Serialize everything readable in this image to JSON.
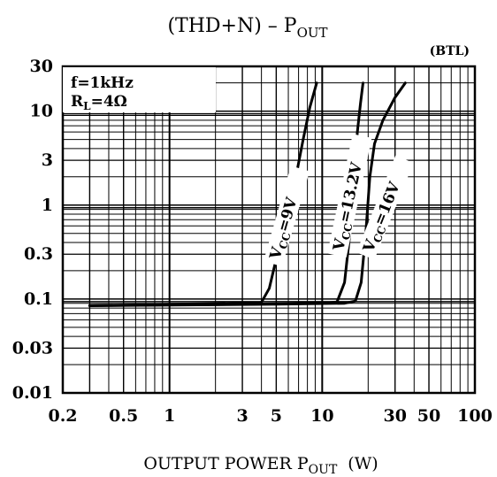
{
  "chart_data": {
    "type": "line",
    "title": "(THD+N) - POUT",
    "title_parts": {
      "main": "(THD+N)  –  P",
      "sub": "OUT"
    },
    "corner_note": "(BTL)",
    "xlabel_parts": {
      "main": "OUTPUT POWER P",
      "sub": "OUT",
      "unit": "(W)"
    },
    "ylabel": "",
    "x_scale": "log",
    "y_scale": "log",
    "xlim": [
      0.2,
      100
    ],
    "ylim": [
      0.01,
      30
    ],
    "x_tick_labels": [
      {
        "v": 0.2,
        "label": "0.2"
      },
      {
        "v": 0.5,
        "label": "0.5"
      },
      {
        "v": 1,
        "label": "1"
      },
      {
        "v": 3,
        "label": "3"
      },
      {
        "v": 5,
        "label": "5"
      },
      {
        "v": 10,
        "label": "10"
      },
      {
        "v": 30,
        "label": "30"
      },
      {
        "v": 50,
        "label": "50"
      },
      {
        "v": 100,
        "label": "100"
      }
    ],
    "y_tick_labels": [
      {
        "v": 30,
        "label": "30"
      },
      {
        "v": 10,
        "label": "10"
      },
      {
        "v": 3,
        "label": "3"
      },
      {
        "v": 1,
        "label": "1"
      },
      {
        "v": 0.3,
        "label": "0.3"
      },
      {
        "v": 0.1,
        "label": "0.1"
      },
      {
        "v": 0.03,
        "label": "0.03"
      },
      {
        "v": 0.01,
        "label": "0.01"
      }
    ],
    "grid": true,
    "conditions": {
      "freq": "f=1kHz",
      "rl_main": "R",
      "rl_sub": "L",
      "rl_value": "=4Ω"
    },
    "series": [
      {
        "name": "VCC=9V",
        "label_main": "V",
        "label_sub": "CC",
        "label_value": "=9V",
        "points": [
          [
            0.3,
            0.085
          ],
          [
            1,
            0.088
          ],
          [
            3.5,
            0.09
          ],
          [
            4,
            0.092
          ],
          [
            4.5,
            0.13
          ],
          [
            5.2,
            0.35
          ],
          [
            6.5,
            1.5
          ],
          [
            7.5,
            5
          ],
          [
            8.3,
            11
          ],
          [
            9.2,
            20
          ]
        ]
      },
      {
        "name": "VCC=13.2V",
        "label_main": "V",
        "label_sub": "CC",
        "label_value": "=13.2V",
        "points": [
          [
            0.3,
            0.085
          ],
          [
            3,
            0.088
          ],
          [
            10,
            0.09
          ],
          [
            12.5,
            0.093
          ],
          [
            14,
            0.15
          ],
          [
            15.2,
            0.5
          ],
          [
            16.2,
            2
          ],
          [
            17,
            6
          ],
          [
            17.8,
            12
          ],
          [
            18.5,
            20
          ]
        ]
      },
      {
        "name": "VCC=16V",
        "label_main": "V",
        "label_sub": "CC",
        "label_value": "=16V",
        "points": [
          [
            0.3,
            0.085
          ],
          [
            5,
            0.088
          ],
          [
            14,
            0.09
          ],
          [
            16.5,
            0.095
          ],
          [
            18,
            0.15
          ],
          [
            19.3,
            0.5
          ],
          [
            20.5,
            2
          ],
          [
            22,
            4.5
          ],
          [
            25,
            8
          ],
          [
            30,
            14
          ],
          [
            35,
            20
          ]
        ]
      }
    ]
  }
}
